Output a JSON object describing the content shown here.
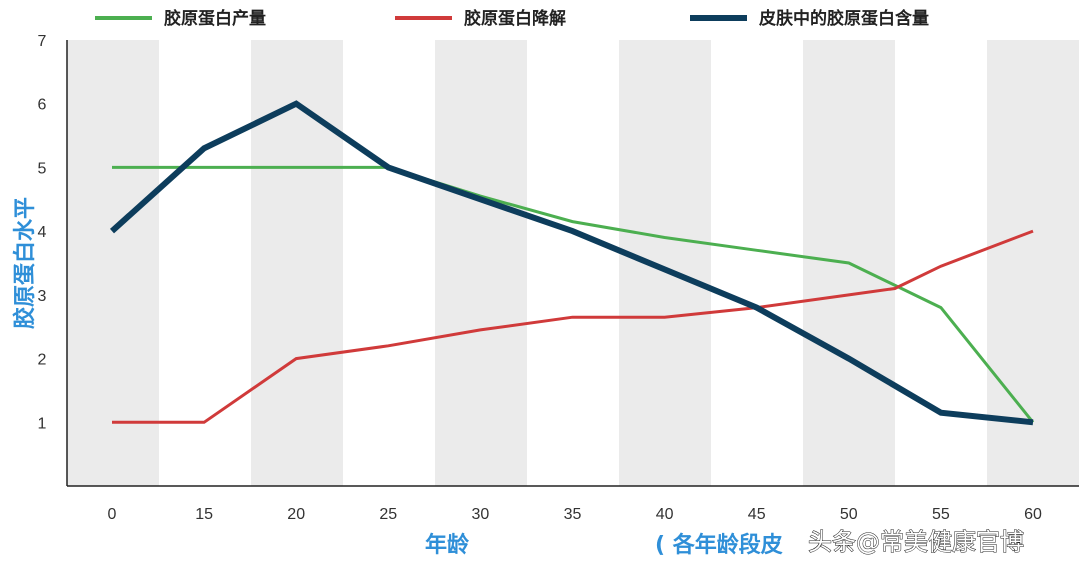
{
  "chart_data": {
    "type": "line",
    "x_categories": [
      "0",
      "15",
      "20",
      "25",
      "30",
      "35",
      "40",
      "45",
      "50",
      "55",
      "60"
    ],
    "xlabel": "年龄",
    "ylabel": "胶原蛋白水平",
    "ylim": [
      0,
      7
    ],
    "yticks": [
      1,
      2,
      3,
      4,
      5,
      6,
      7
    ],
    "grid": "alternating vertical bands",
    "legend_position": "top",
    "footnote": "( 各年龄段皮",
    "series": [
      {
        "name": "胶原蛋白产量",
        "color": "#4caf50",
        "width": "thin",
        "points": [
          [
            0,
            5
          ],
          [
            15,
            5
          ],
          [
            20,
            5
          ],
          [
            25,
            5
          ],
          [
            30,
            4.55
          ],
          [
            35,
            4.15
          ],
          [
            40,
            3.9
          ],
          [
            45,
            3.7
          ],
          [
            50,
            3.5
          ],
          [
            55,
            2.8
          ],
          [
            60,
            1.0
          ]
        ]
      },
      {
        "name": "胶原蛋白降解",
        "color": "#d03a3a",
        "width": "thin",
        "points": [
          [
            0,
            1
          ],
          [
            15,
            1
          ],
          [
            20,
            2
          ],
          [
            25,
            2.2
          ],
          [
            30,
            2.45
          ],
          [
            35,
            2.65
          ],
          [
            40,
            2.65
          ],
          [
            45,
            2.8
          ],
          [
            50,
            3.0
          ],
          [
            52.5,
            3.1
          ],
          [
            55,
            3.45
          ],
          [
            60,
            4.0
          ]
        ]
      },
      {
        "name": "皮肤中的胶原蛋白含量",
        "color": "#0d3d5c",
        "width": "thick",
        "points": [
          [
            0,
            4
          ],
          [
            15,
            5.3
          ],
          [
            20,
            6
          ],
          [
            25,
            5
          ],
          [
            30,
            4.5
          ],
          [
            35,
            4.0
          ],
          [
            40,
            3.4
          ],
          [
            45,
            2.8
          ],
          [
            50,
            2.0
          ],
          [
            55,
            1.15
          ],
          [
            60,
            1.0
          ]
        ]
      }
    ]
  },
  "watermark": "头条@常美健康官博"
}
